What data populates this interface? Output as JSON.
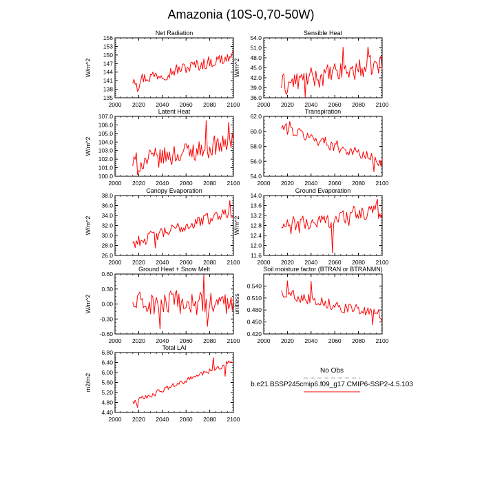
{
  "figure": {
    "title": "Amazonia (10S-0,70-50W)",
    "legend": {
      "obs_label": "No Obs",
      "model_label": "b.e21.BSSP245cmip6.f09_g17.CMIP6-SSP2-4.5.103",
      "obs_color": "#aaaaaa",
      "model_color": "#ff0000"
    }
  },
  "chart_data": [
    {
      "type": "line",
      "title": "Net Radiation",
      "xlabel": "",
      "ylabel": "W/m^2",
      "xlim": [
        2000,
        2100
      ],
      "ylim": [
        135,
        156
      ],
      "xticks": [
        2000,
        2020,
        2040,
        2060,
        2080,
        2100
      ],
      "yticks": [
        135,
        138,
        141,
        144,
        147,
        150,
        153,
        156
      ],
      "ytick_labels": [
        "135",
        "138",
        "141",
        "144",
        "147",
        "150",
        "153",
        "156"
      ],
      "x": [
        2015,
        2100
      ],
      "base": [
        141,
        149.5
      ],
      "amp": 2.6,
      "extra": [
        [
          2016,
          141.5
        ],
        [
          2019,
          137.2
        ],
        [
          2020,
          137.8
        ]
      ],
      "series_color": "#ff0000"
    },
    {
      "type": "line",
      "title": "Sensible Heat",
      "xlabel": "",
      "ylabel": "W/m^2",
      "xlim": [
        2000,
        2100
      ],
      "ylim": [
        36,
        54
      ],
      "xticks": [
        2000,
        2020,
        2040,
        2060,
        2080,
        2100
      ],
      "yticks": [
        36,
        39,
        42,
        45,
        48,
        51,
        54
      ],
      "ytick_labels": [
        "36.0",
        "39.0",
        "42.0",
        "45.0",
        "48.0",
        "51.0",
        "54.0"
      ],
      "x": [
        2015,
        2100
      ],
      "base": [
        40,
        46
      ],
      "amp": 3.6,
      "extra": [
        [
          2019,
          37.0
        ],
        [
          2035,
          36.2
        ],
        [
          2067,
          51.2
        ],
        [
          2088,
          51.3
        ]
      ],
      "series_color": "#ff0000"
    },
    {
      "type": "line",
      "title": "Latent Heat",
      "xlabel": "",
      "ylabel": "W/m^2",
      "xlim": [
        2000,
        2100
      ],
      "ylim": [
        100,
        107
      ],
      "xticks": [
        2000,
        2020,
        2040,
        2060,
        2080,
        2100
      ],
      "yticks": [
        100,
        101,
        102,
        103,
        104,
        105,
        106,
        107
      ],
      "ytick_labels": [
        "100.0",
        "101.0",
        "102.0",
        "103.0",
        "104.0",
        "105.0",
        "106.0",
        "107.0"
      ],
      "x": [
        2015,
        2100
      ],
      "base": [
        101.5,
        104
      ],
      "amp": 1.4,
      "extra": [
        [
          2019,
          100.2
        ],
        [
          2077,
          106.5
        ],
        [
          2096,
          106.3
        ]
      ],
      "series_color": "#ff0000"
    },
    {
      "type": "line",
      "title": "Transpiration",
      "xlabel": "",
      "ylabel": "",
      "xlim": [
        2000,
        2100
      ],
      "ylim": [
        54,
        62
      ],
      "xticks": [
        2000,
        2020,
        2040,
        2060,
        2080,
        2100
      ],
      "yticks": [
        54,
        56,
        58,
        60,
        62
      ],
      "ytick_labels": [
        "54.0",
        "56.0",
        "58.0",
        "60.0",
        "62.0"
      ],
      "x": [
        2015,
        2100
      ],
      "base": [
        60.5,
        56
      ],
      "amp": 0.9,
      "extra": [
        [
          2022,
          61.3
        ],
        [
          2093,
          54.6
        ]
      ],
      "series_color": "#ff0000"
    },
    {
      "type": "line",
      "title": "Canopy Evaporation",
      "xlabel": "",
      "ylabel": "W/m^2",
      "xlim": [
        2000,
        2100
      ],
      "ylim": [
        26,
        38
      ],
      "xticks": [
        2000,
        2020,
        2040,
        2060,
        2080,
        2100
      ],
      "yticks": [
        26,
        28,
        30,
        32,
        34,
        36,
        38
      ],
      "ytick_labels": [
        "26.0",
        "28.0",
        "30.0",
        "32.0",
        "34.0",
        "36.0",
        "38.0"
      ],
      "x": [
        2015,
        2100
      ],
      "base": [
        28.5,
        35
      ],
      "amp": 1.4,
      "extra": [
        [
          2034,
          27.5
        ],
        [
          2097,
          37.0
        ]
      ],
      "series_color": "#ff0000"
    },
    {
      "type": "line",
      "title": "Ground Evaporation",
      "xlabel": "",
      "ylabel": "W/m^2",
      "xlim": [
        2000,
        2100
      ],
      "ylim": [
        11.6,
        14
      ],
      "xticks": [
        2000,
        2020,
        2040,
        2060,
        2080,
        2100
      ],
      "yticks": [
        11.6,
        12.0,
        12.4,
        12.8,
        13.2,
        13.6,
        14.0
      ],
      "ytick_labels": [
        "11.6",
        "12.0",
        "12.4",
        "12.8",
        "13.2",
        "13.6",
        "14.0"
      ],
      "x": [
        2015,
        2100
      ],
      "base": [
        12.7,
        13.4
      ],
      "amp": 0.42,
      "extra": [
        [
          2058,
          11.7
        ],
        [
          2096,
          13.85
        ]
      ],
      "series_color": "#ff0000"
    },
    {
      "type": "line",
      "title": "Ground Heat + Snow Melt",
      "xlabel": "",
      "ylabel": "W/m^2",
      "xlim": [
        2000,
        2100
      ],
      "ylim": [
        -0.6,
        0.6
      ],
      "xticks": [
        2000,
        2020,
        2040,
        2060,
        2080,
        2100
      ],
      "yticks": [
        -0.6,
        -0.3,
        0.0,
        0.3,
        0.6
      ],
      "ytick_labels": [
        "-0.60",
        "-0.30",
        "0.00",
        "0.30",
        "0.60"
      ],
      "x": [
        2015,
        2100
      ],
      "base": [
        0.0,
        0.0
      ],
      "amp": 0.28,
      "extra": [
        [
          2038,
          -0.5
        ],
        [
          2075,
          0.6
        ],
        [
          2078,
          -0.45
        ]
      ],
      "series_color": "#ff0000"
    },
    {
      "type": "line",
      "title": "Soil moisture factor (BTRAN or BTRANMN)",
      "xlabel": "",
      "ylabel": "unitless",
      "xlim": [
        2000,
        2100
      ],
      "ylim": [
        0.42,
        0.57
      ],
      "xticks": [
        2000,
        2020,
        2040,
        2060,
        2080,
        2100
      ],
      "yticks": [
        0.42,
        0.45,
        0.48,
        0.51,
        0.54
      ],
      "ytick_labels": [
        "0.420",
        "0.450",
        "0.480",
        "0.510",
        "0.540"
      ],
      "x": [
        2015,
        2100
      ],
      "base": [
        0.525,
        0.465
      ],
      "amp": 0.016,
      "extra": [
        [
          2020,
          0.553
        ],
        [
          2040,
          0.552
        ],
        [
          2092,
          0.443
        ]
      ],
      "series_color": "#ff0000"
    },
    {
      "type": "line",
      "title": "Total LAI",
      "xlabel": "",
      "ylabel": "m2/m2",
      "xlim": [
        2000,
        2100
      ],
      "ylim": [
        4.4,
        6.8
      ],
      "xticks": [
        2000,
        2020,
        2040,
        2060,
        2080,
        2100
      ],
      "yticks": [
        4.4,
        4.8,
        5.2,
        5.6,
        6.0,
        6.4,
        6.8
      ],
      "ytick_labels": [
        "4.40",
        "4.80",
        "5.20",
        "5.60",
        "6.00",
        "6.40",
        "6.80"
      ],
      "x": [
        2015,
        2100
      ],
      "base": [
        4.8,
        6.45
      ],
      "amp": 0.12,
      "extra": [
        [
          2019,
          4.6
        ],
        [
          2083,
          6.6
        ],
        [
          2093,
          5.85
        ]
      ],
      "series_color": "#ff0000"
    }
  ]
}
